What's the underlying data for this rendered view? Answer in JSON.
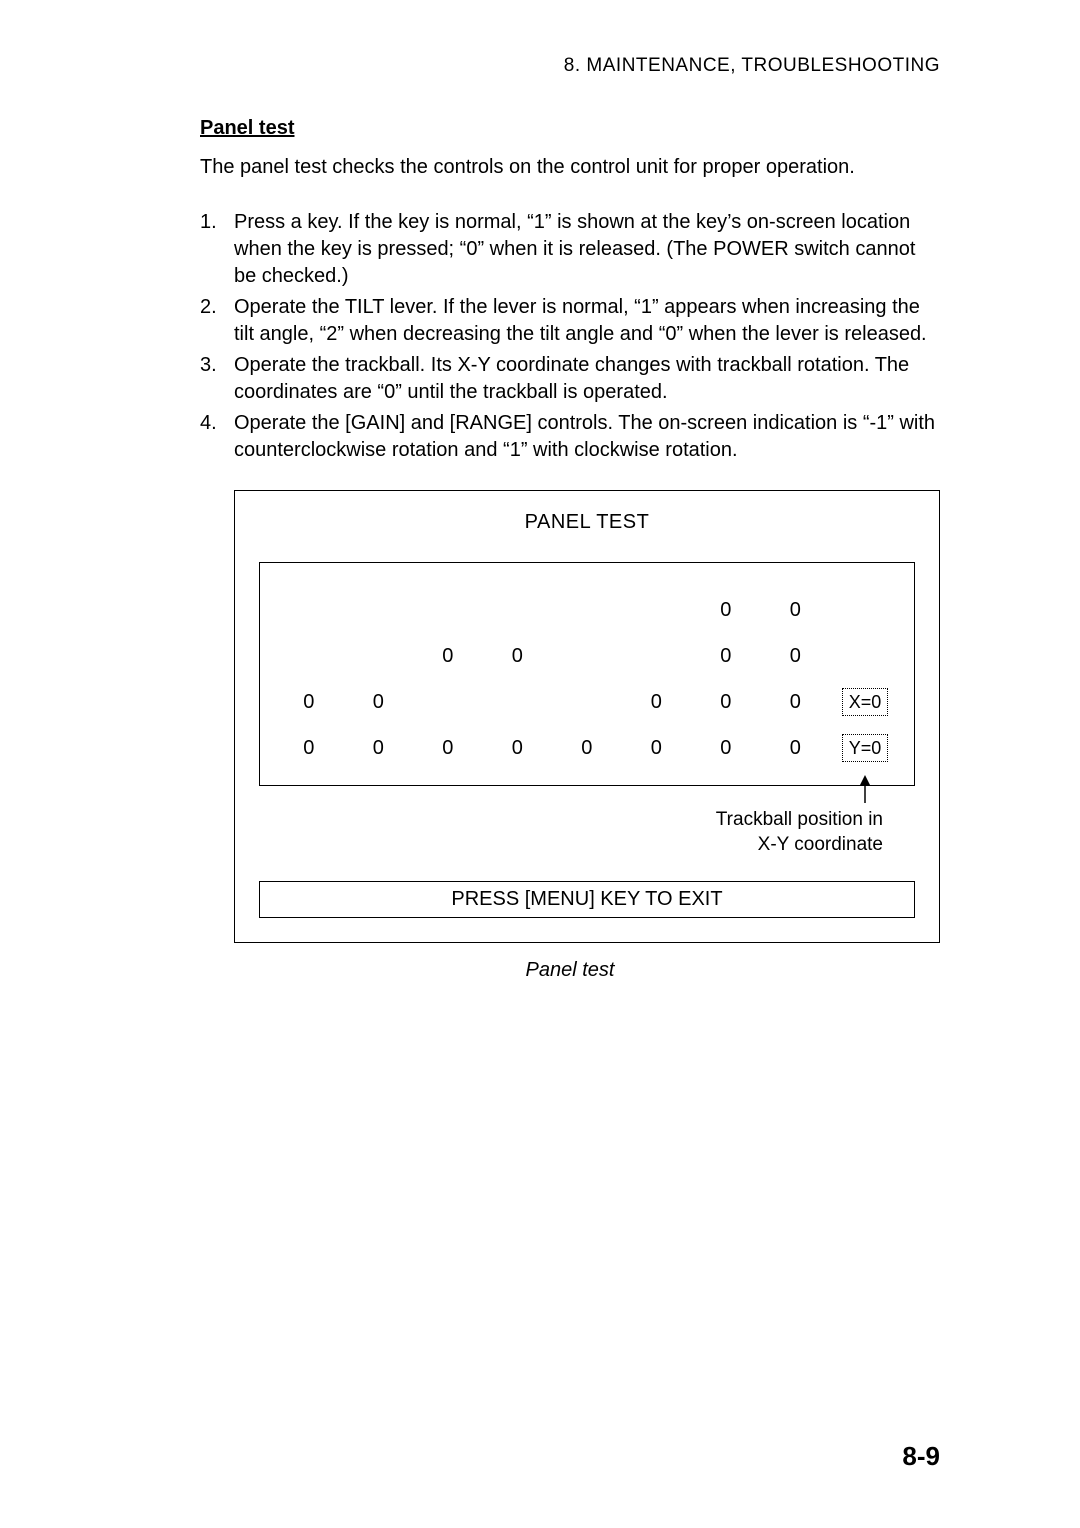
{
  "header": "8. MAINTENANCE,  TROUBLESHOOTING",
  "section_title": "Panel test",
  "intro": "The panel test checks the controls on the control unit for proper operation.",
  "list": [
    {
      "num": "1.",
      "text": "Press a key. If the key is normal, “1” is shown at the key’s on-screen location when the key is pressed; “0” when it is released. (The POWER switch cannot be checked.)"
    },
    {
      "num": "2.",
      "text": "Operate the TILT lever. If the lever is normal, “1” appears when increasing the tilt angle, “2” when decreasing the tilt angle and “0” when the lever is released."
    },
    {
      "num": "3.",
      "text": "Operate the trackball. Its X-Y coordinate changes with trackball rotation. The coordinates are “0” until the trackball is operated."
    },
    {
      "num": "4.",
      "text": "Operate the [GAIN] and [RANGE] controls. The on-screen indication is “-1” with counterclockwise rotation and “1” with clockwise rotation."
    }
  ],
  "panel": {
    "title": "PANEL TEST",
    "grid": {
      "rows": [
        [
          "",
          "",
          "",
          "",
          "",
          "",
          "0",
          "0",
          ""
        ],
        [
          "",
          "",
          "0",
          "0",
          "",
          "",
          "0",
          "0",
          ""
        ],
        [
          "0",
          "0",
          "",
          "",
          "",
          "0",
          "0",
          "0",
          "X=0"
        ],
        [
          "0",
          "0",
          "0",
          "0",
          "0",
          "0",
          "0",
          "0",
          "Y=0"
        ]
      ],
      "xy_row_indices": [
        2,
        3
      ]
    },
    "annotation": "Trackball position in\nX-Y coordinate",
    "exit": "PRESS [MENU] KEY TO EXIT"
  },
  "caption": "Panel test",
  "page_num": "8-9"
}
